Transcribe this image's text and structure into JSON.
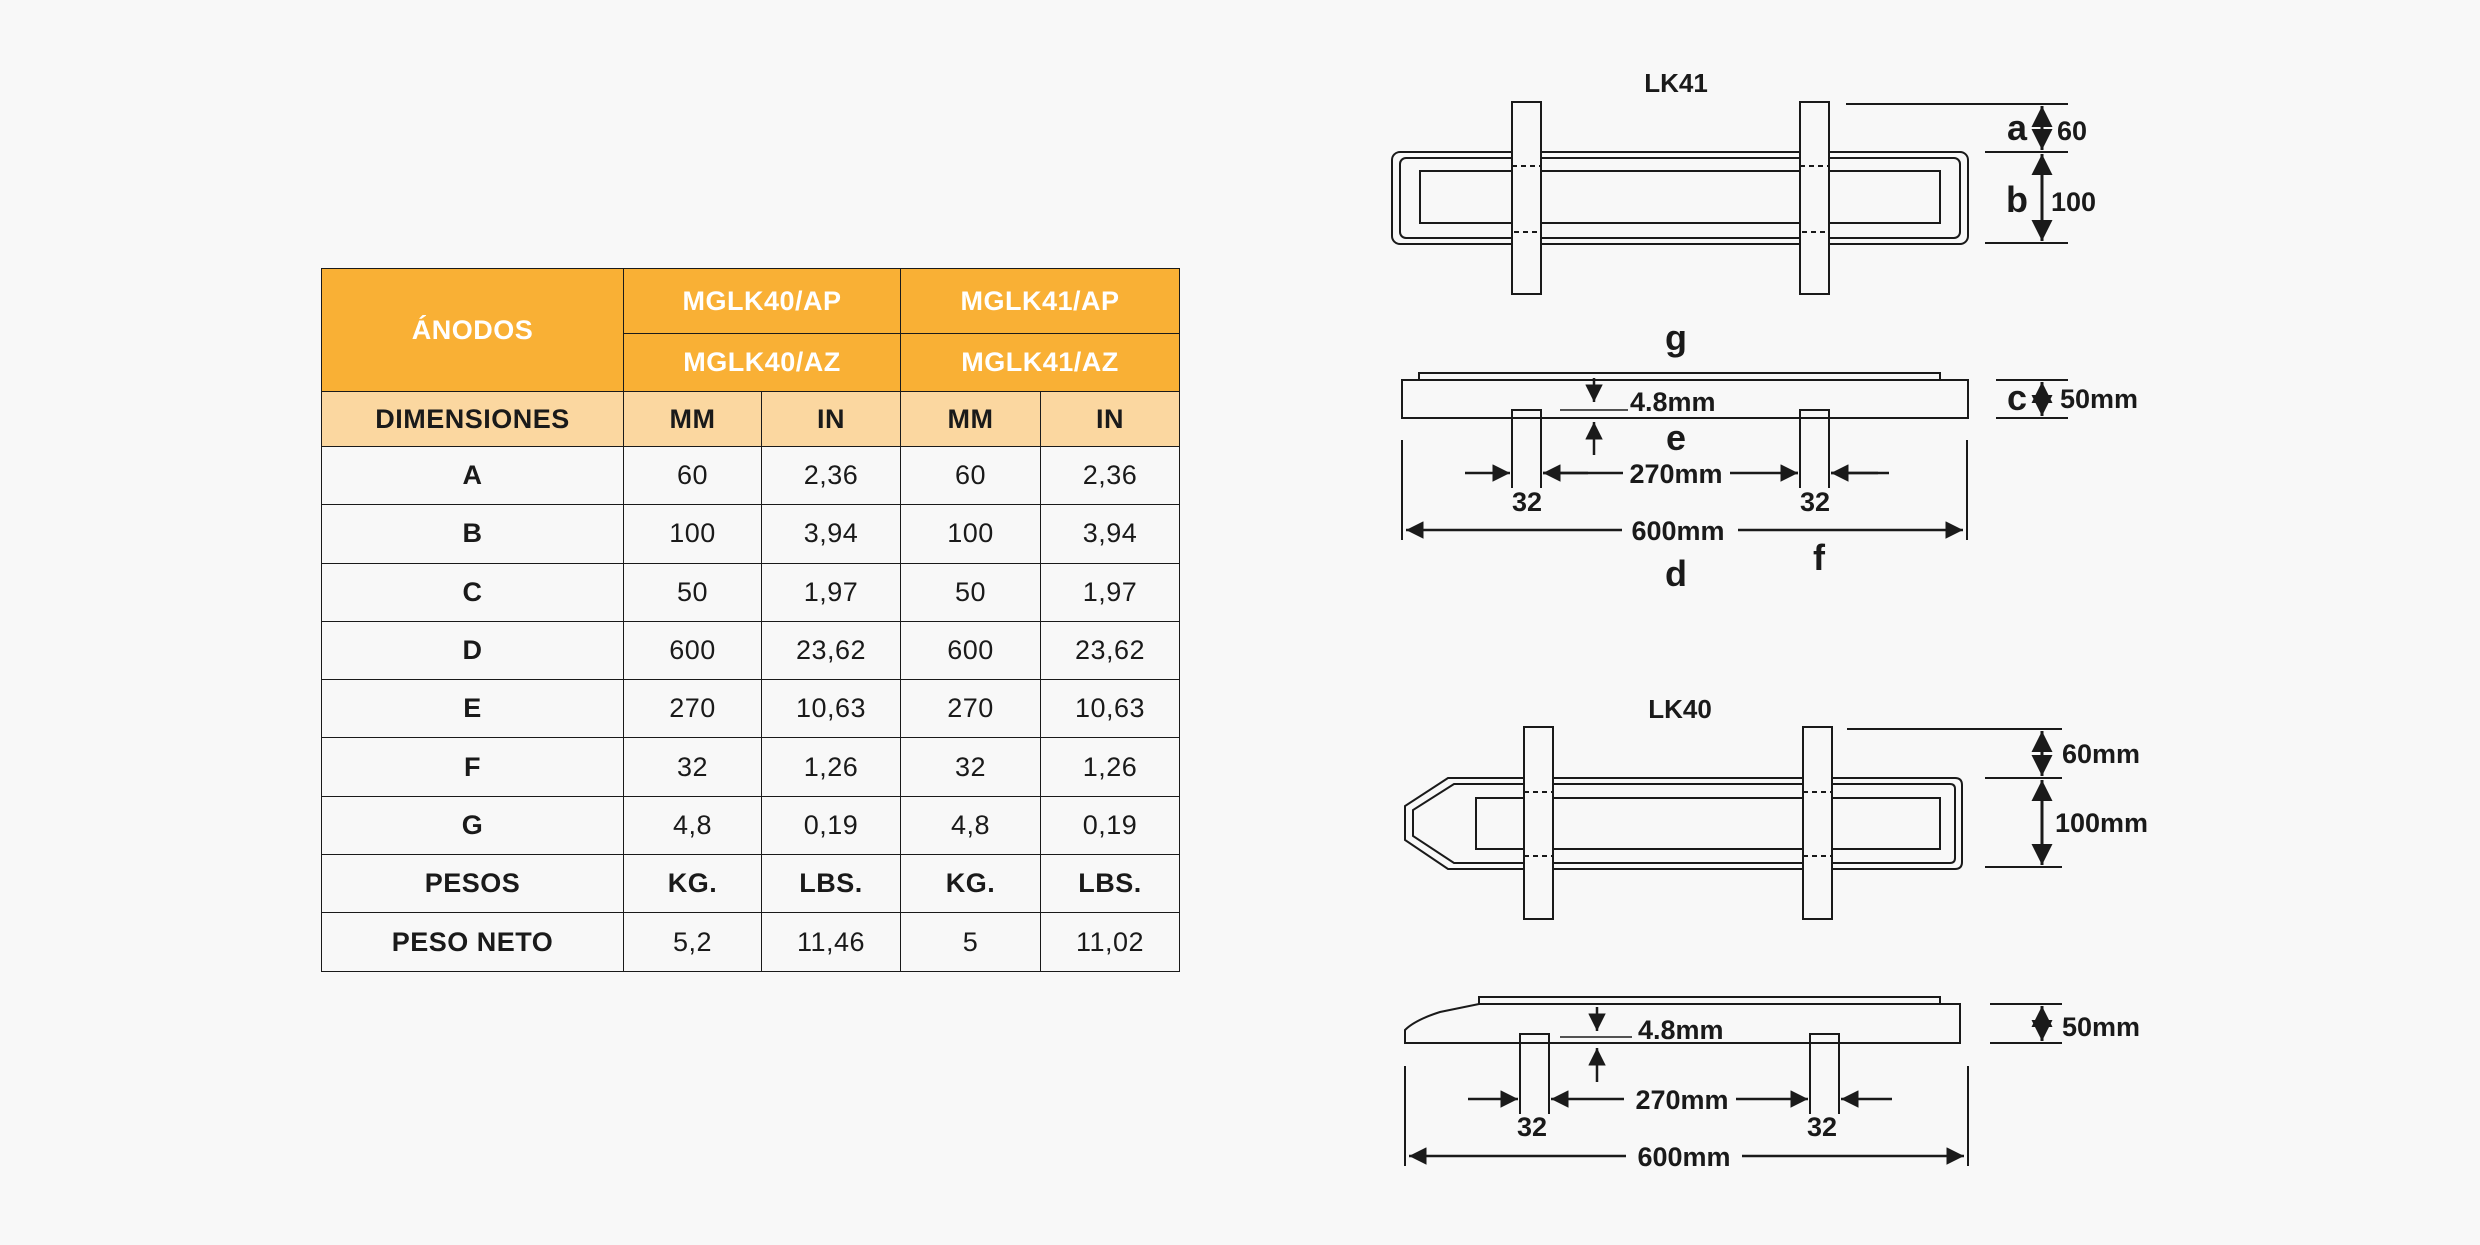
{
  "table": {
    "anodos_label": "ÁNODOS",
    "model_lk40_ap": "MGLK40/AP",
    "model_lk40_az": "MGLK40/AZ",
    "model_lk41_ap": "MGLK41/AP",
    "model_lk41_az": "MGLK41/AZ",
    "dimensiones_label": "DIMENSIONES",
    "units": [
      "MM",
      "IN",
      "MM",
      "IN"
    ],
    "rows": [
      {
        "label": "A",
        "v": [
          "60",
          "2,36",
          "60",
          "2,36"
        ]
      },
      {
        "label": "B",
        "v": [
          "100",
          "3,94",
          "100",
          "3,94"
        ]
      },
      {
        "label": "C",
        "v": [
          "50",
          "1,97",
          "50",
          "1,97"
        ]
      },
      {
        "label": "D",
        "v": [
          "600",
          "23,62",
          "600",
          "23,62"
        ]
      },
      {
        "label": "E",
        "v": [
          "270",
          "10,63",
          "270",
          "10,63"
        ]
      },
      {
        "label": "F",
        "v": [
          "32",
          "1,26",
          "32",
          "1,26"
        ]
      },
      {
        "label": "G",
        "v": [
          "4,8",
          "0,19",
          "4,8",
          "0,19"
        ]
      }
    ],
    "pesos_label": "PESOS",
    "weight_units": [
      "KG.",
      "LBS.",
      "KG.",
      "LBS."
    ],
    "peso_neto_label": "PESO NETO",
    "peso_neto_values": [
      "5,2",
      "11,46",
      "5",
      "11,02"
    ]
  },
  "lk41": {
    "title": "LK41",
    "letter_a": "a",
    "val_a": "60",
    "letter_b": "b",
    "val_b": "100",
    "letter_g": "g",
    "letter_c": "c",
    "val_c": "50mm",
    "val_g": "4.8mm",
    "letter_e": "e",
    "val_e": "270mm",
    "val_f_left": "32",
    "val_f_right": "32",
    "val_d": "600mm",
    "letter_d": "d",
    "letter_f": "f"
  },
  "lk40": {
    "title": "LK40",
    "val_a": "60mm",
    "val_b": "100mm",
    "val_c": "50mm",
    "val_g": "4.8mm",
    "val_e": "270mm",
    "val_f_left": "32",
    "val_f_right": "32",
    "val_d": "600mm"
  },
  "colors": {
    "header": "#f9b035",
    "subheader": "#fbd7a0",
    "line": "#1a1a1a"
  }
}
